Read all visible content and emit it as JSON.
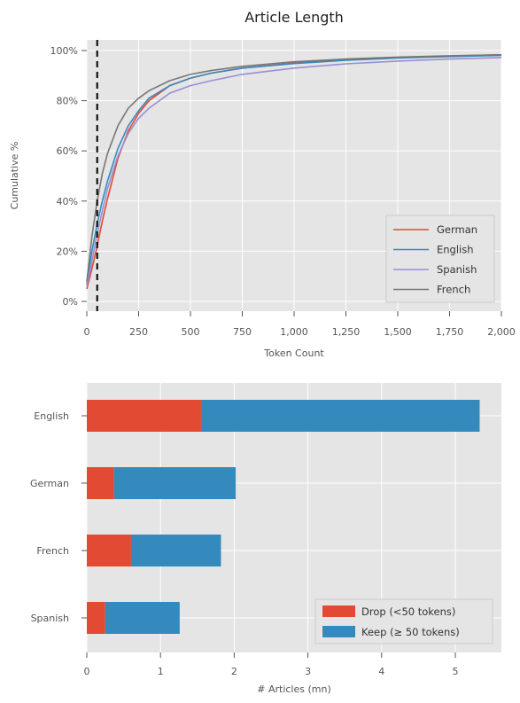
{
  "chart_data": [
    {
      "type": "line",
      "title": "Article Length",
      "xlabel": "Token Count",
      "ylabel": "Cumulative %",
      "xlim": [
        0,
        2000
      ],
      "ylim": [
        0,
        1.05
      ],
      "xticks": [
        0,
        250,
        500,
        750,
        1000,
        1250,
        1500,
        1750,
        2000
      ],
      "xtick_labels": [
        "0",
        "250",
        "500",
        "750",
        "1,000",
        "1,250",
        "1,500",
        "1,750",
        "2,000"
      ],
      "yticks": [
        0,
        0.2,
        0.4,
        0.6,
        0.8,
        1.0
      ],
      "ytick_labels": [
        "0%",
        "20%",
        "40%",
        "60%",
        "80%",
        "100%"
      ],
      "grid": true,
      "legend_position": "lower-right",
      "reference_line": {
        "x": 50,
        "style": "dashed"
      },
      "series": [
        {
          "name": "German",
          "color": "#e24a33",
          "x": [
            0,
            25,
            50,
            75,
            100,
            150,
            200,
            250,
            300,
            400,
            500,
            600,
            750,
            1000,
            1250,
            1500,
            1750,
            2000
          ],
          "y": [
            0.05,
            0.13,
            0.22,
            0.32,
            0.41,
            0.57,
            0.68,
            0.75,
            0.8,
            0.86,
            0.89,
            0.91,
            0.93,
            0.95,
            0.963,
            0.972,
            0.978,
            0.983
          ]
        },
        {
          "name": "English",
          "color": "#348abd",
          "x": [
            0,
            25,
            50,
            75,
            100,
            150,
            200,
            250,
            300,
            400,
            500,
            600,
            750,
            1000,
            1250,
            1500,
            1750,
            2000
          ],
          "y": [
            0.07,
            0.2,
            0.31,
            0.4,
            0.48,
            0.61,
            0.7,
            0.76,
            0.81,
            0.86,
            0.89,
            0.91,
            0.93,
            0.948,
            0.961,
            0.97,
            0.976,
            0.981
          ]
        },
        {
          "name": "Spanish",
          "color": "#988ed5",
          "x": [
            0,
            25,
            50,
            75,
            100,
            150,
            200,
            250,
            300,
            400,
            500,
            600,
            750,
            1000,
            1250,
            1500,
            1750,
            2000
          ],
          "y": [
            0.06,
            0.16,
            0.27,
            0.36,
            0.45,
            0.58,
            0.67,
            0.73,
            0.77,
            0.83,
            0.86,
            0.88,
            0.905,
            0.93,
            0.947,
            0.958,
            0.966,
            0.972
          ]
        },
        {
          "name": "French",
          "color": "#777777",
          "x": [
            0,
            25,
            50,
            75,
            100,
            150,
            200,
            250,
            300,
            400,
            500,
            600,
            750,
            1000,
            1250,
            1500,
            1750,
            2000
          ],
          "y": [
            0.08,
            0.26,
            0.4,
            0.51,
            0.59,
            0.7,
            0.77,
            0.81,
            0.84,
            0.88,
            0.905,
            0.92,
            0.937,
            0.955,
            0.966,
            0.974,
            0.979,
            0.983
          ]
        }
      ]
    },
    {
      "type": "bar",
      "orientation": "horizontal",
      "stacked": true,
      "categories": [
        "English",
        "German",
        "French",
        "Spanish"
      ],
      "xlabel": "# Articles (mn)",
      "xlim": [
        0,
        5.6
      ],
      "xticks": [
        0,
        1,
        2,
        3,
        4,
        5
      ],
      "grid": true,
      "legend_position": "lower-right",
      "series": [
        {
          "name": "Drop (<50 tokens)",
          "color": "#e24a33",
          "values": [
            1.55,
            0.37,
            0.6,
            0.25
          ]
        },
        {
          "name": "Keep (≥ 50 tokens)",
          "color": "#348abd",
          "values": [
            3.78,
            1.65,
            1.22,
            1.01
          ]
        }
      ]
    }
  ]
}
